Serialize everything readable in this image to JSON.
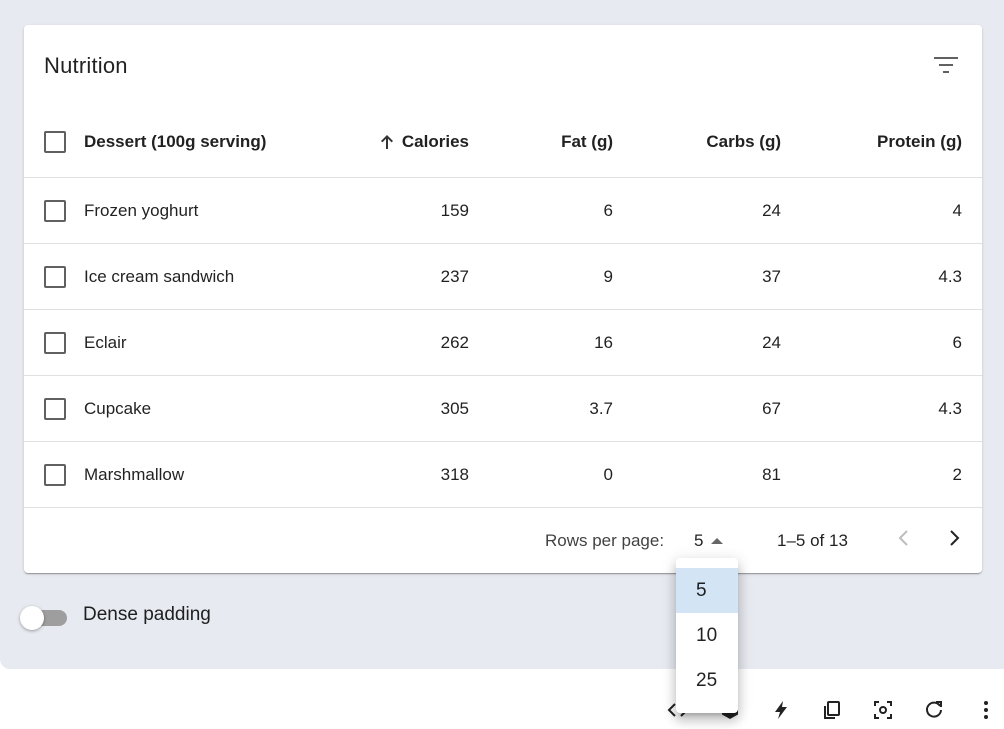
{
  "table": {
    "title": "Nutrition",
    "columns": [
      "Dessert (100g serving)",
      "Calories",
      "Fat (g)",
      "Carbs (g)",
      "Protein (g)"
    ],
    "sorted_column": "Calories",
    "sort_direction": "ascending",
    "rows": [
      {
        "name": "Frozen yoghurt",
        "calories": "159",
        "fat": "6",
        "carbs": "24",
        "protein": "4"
      },
      {
        "name": "Ice cream sandwich",
        "calories": "237",
        "fat": "9",
        "carbs": "37",
        "protein": "4.3"
      },
      {
        "name": "Eclair",
        "calories": "262",
        "fat": "16",
        "carbs": "24",
        "protein": "6"
      },
      {
        "name": "Cupcake",
        "calories": "305",
        "fat": "3.7",
        "carbs": "67",
        "protein": "4.3"
      },
      {
        "name": "Marshmallow",
        "calories": "318",
        "fat": "0",
        "carbs": "81",
        "protein": "2"
      }
    ]
  },
  "pagination": {
    "rows_per_page_label": "Rows per page:",
    "rows_per_page_value": "5",
    "range_text": "1–5 of 13",
    "options": [
      "5",
      "10",
      "25"
    ],
    "selected_option": "5"
  },
  "dense_padding": {
    "label": "Dense padding",
    "checked": false
  },
  "icons": {
    "filter": "filter-list-icon",
    "sort": "arrow-upward-icon",
    "prev": "chevron-left-icon",
    "next": "chevron-right-icon",
    "bottom_bar": [
      "code-icon",
      "sandbox-icon",
      "bolt-icon",
      "copy-icon",
      "focus-icon",
      "reset-icon",
      "more-vert-icon"
    ]
  },
  "colors": {
    "background": "#e7eaf0",
    "selected_option": "#d3e4f5"
  }
}
